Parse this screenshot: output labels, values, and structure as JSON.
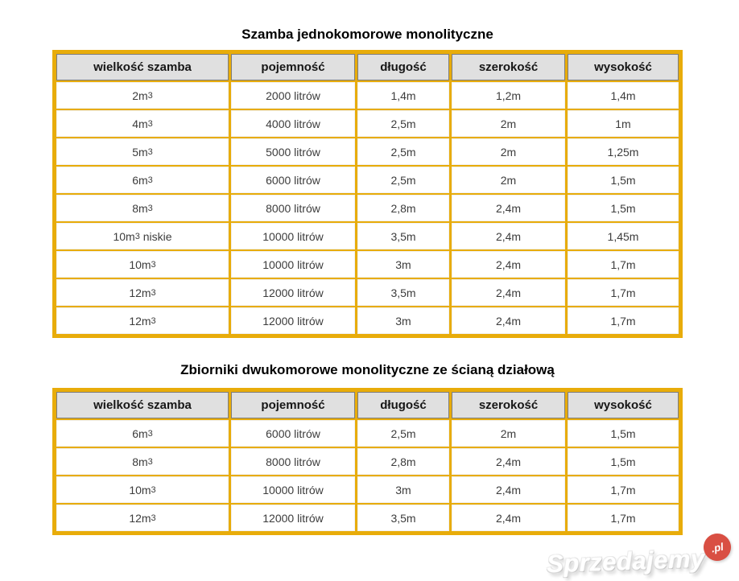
{
  "colors": {
    "table_border": "#e8ac0a",
    "header_background": "#e0e0e0",
    "header_border": "#7d7d7d",
    "header_text": "#161616",
    "cell_text": "#3c3c3c",
    "page_background": "#ffffff",
    "watermark_badge_red": "#d94f43"
  },
  "watermark": {
    "brand": "Sprzedajemy",
    "tld": ".pl"
  },
  "chart_data": [
    {
      "type": "table",
      "title": "Szamba jednokomorowe monolityczne",
      "columns": [
        "wielkość szamba",
        "pojemność",
        "długość",
        "szerokość",
        "wysokość"
      ],
      "rows": [
        {
          "size": {
            "label": "2m³",
            "base": "2m",
            "sup": "3",
            "suffix": ""
          },
          "cells": [
            "2000 litrów",
            "1,4m",
            "1,2m",
            "1,4m"
          ]
        },
        {
          "size": {
            "label": "4m³",
            "base": "4m",
            "sup": "3",
            "suffix": ""
          },
          "cells": [
            "4000 litrów",
            "2,5m",
            "2m",
            "1m"
          ]
        },
        {
          "size": {
            "label": "5m³",
            "base": "5m",
            "sup": "3",
            "suffix": ""
          },
          "cells": [
            "5000 litrów",
            "2,5m",
            "2m",
            "1,25m"
          ]
        },
        {
          "size": {
            "label": "6m³",
            "base": "6m",
            "sup": "3",
            "suffix": ""
          },
          "cells": [
            "6000 litrów",
            "2,5m",
            "2m",
            "1,5m"
          ]
        },
        {
          "size": {
            "label": "8m³",
            "base": "8m",
            "sup": "3",
            "suffix": ""
          },
          "cells": [
            "8000 litrów",
            "2,8m",
            "2,4m",
            "1,5m"
          ]
        },
        {
          "size": {
            "label": "10m³ niskie",
            "base": "10m",
            "sup": "3",
            "suffix": " niskie"
          },
          "cells": [
            "10000 litrów",
            "3,5m",
            "2,4m",
            "1,45m"
          ]
        },
        {
          "size": {
            "label": "10m³",
            "base": "10m",
            "sup": "3",
            "suffix": ""
          },
          "cells": [
            "10000 litrów",
            "3m",
            "2,4m",
            "1,7m"
          ]
        },
        {
          "size": {
            "label": "12m³",
            "base": "12m",
            "sup": "3",
            "suffix": ""
          },
          "cells": [
            "12000 litrów",
            "3,5m",
            "2,4m",
            "1,7m"
          ]
        },
        {
          "size": {
            "label": "12m³",
            "base": "12m",
            "sup": "3",
            "suffix": ""
          },
          "cells": [
            "12000 litrów",
            "3m",
            "2,4m",
            "1,7m"
          ]
        }
      ]
    },
    {
      "type": "table",
      "title": "Zbiorniki dwukomorowe monolityczne ze ścianą działową",
      "columns": [
        "wielkość szamba",
        "pojemność",
        "długość",
        "szerokość",
        "wysokość"
      ],
      "rows": [
        {
          "size": {
            "label": "6m³",
            "base": "6m",
            "sup": "3",
            "suffix": ""
          },
          "cells": [
            "6000 litrów",
            "2,5m",
            "2m",
            "1,5m"
          ]
        },
        {
          "size": {
            "label": "8m³",
            "base": "8m",
            "sup": "3",
            "suffix": ""
          },
          "cells": [
            "8000 litrów",
            "2,8m",
            "2,4m",
            "1,5m"
          ]
        },
        {
          "size": {
            "label": "10m³",
            "base": "10m",
            "sup": "3",
            "suffix": ""
          },
          "cells": [
            "10000 litrów",
            "3m",
            "2,4m",
            "1,7m"
          ]
        },
        {
          "size": {
            "label": "12m³",
            "base": "12m",
            "sup": "3",
            "suffix": ""
          },
          "cells": [
            "12000 litrów",
            "3,5m",
            "2,4m",
            "1,7m"
          ]
        }
      ]
    }
  ]
}
